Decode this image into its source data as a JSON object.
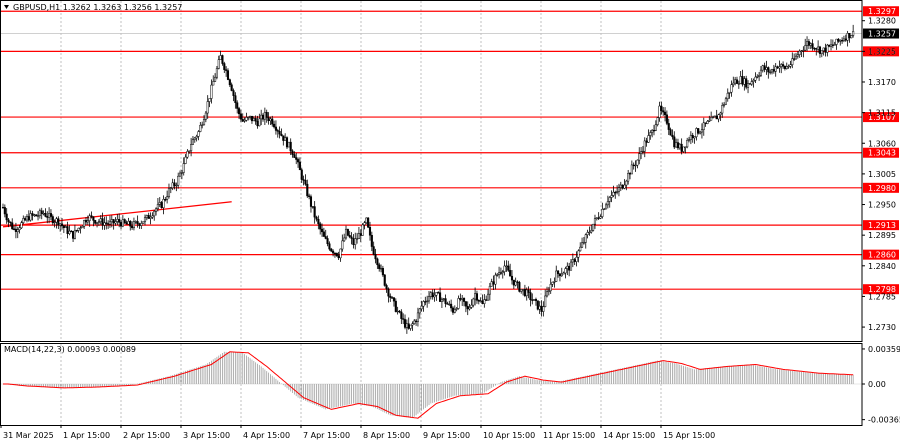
{
  "header": {
    "symbol_info": "GBPUSD,H1  1.3262 1.3263 1.3256 1.3257",
    "macd_info": "MACD(14,22,3) 0.00093 0.00089"
  },
  "colors": {
    "candle": "#000000",
    "grid": "#c0c0c0",
    "level": "#ff0000",
    "trendline": "#ff0000",
    "label_bg": "#ff0000",
    "label_text": "#ffffff",
    "current_bg": "#000000",
    "histogram": "#a0a0a0",
    "signal": "#ff0000"
  },
  "chart_data": {
    "type": "candlestick",
    "symbol": "GBPUSD",
    "timeframe": "H1",
    "y_axis": {
      "ticks": [
        1.273,
        1.2785,
        1.284,
        1.2895,
        1.295,
        1.3005,
        1.306,
        1.3115,
        1.317,
        1.3225,
        1.328
      ]
    },
    "x_axis": {
      "labels": [
        "31 Mar 2025",
        "1 Apr 15:00",
        "2 Apr 15:00",
        "3 Apr 15:00",
        "4 Apr 15:00",
        "7 Apr 15:00",
        "8 Apr 15:00",
        "9 Apr 15:00",
        "10 Apr 15:00",
        "11 Apr 15:00",
        "14 Apr 15:00",
        "15 Apr 15:00"
      ]
    },
    "horizontal_levels": [
      1.3297,
      1.3225,
      1.3107,
      1.3043,
      1.298,
      1.2913,
      1.286,
      1.2798
    ],
    "current_price": 1.3257,
    "trend_line": {
      "from": {
        "index": 0,
        "price": 1.291
      },
      "to": {
        "index": 124,
        "price": 1.2955
      }
    },
    "price_path": [
      [
        0,
        1.2945
      ],
      [
        3,
        1.292
      ],
      [
        6,
        1.2905
      ],
      [
        10,
        1.2915
      ],
      [
        14,
        1.2928
      ],
      [
        18,
        1.293
      ],
      [
        22,
        1.2935
      ],
      [
        26,
        1.2925
      ],
      [
        30,
        1.292
      ],
      [
        34,
        1.2905
      ],
      [
        38,
        1.2895
      ],
      [
        42,
        1.2912
      ],
      [
        46,
        1.2928
      ],
      [
        50,
        1.2922
      ],
      [
        54,
        1.2918
      ],
      [
        58,
        1.2915
      ],
      [
        62,
        1.292
      ],
      [
        66,
        1.2915
      ],
      [
        70,
        1.2912
      ],
      [
        74,
        1.2918
      ],
      [
        78,
        1.2925
      ],
      [
        82,
        1.294
      ],
      [
        86,
        1.295
      ],
      [
        90,
        1.2975
      ],
      [
        94,
        1.299
      ],
      [
        98,
        1.302
      ],
      [
        102,
        1.306
      ],
      [
        106,
        1.308
      ],
      [
        110,
        1.312
      ],
      [
        114,
        1.317
      ],
      [
        118,
        1.3215
      ],
      [
        121,
        1.319
      ],
      [
        124,
        1.316
      ],
      [
        127,
        1.312
      ],
      [
        130,
        1.31
      ],
      [
        134,
        1.3105
      ],
      [
        138,
        1.3098
      ],
      [
        142,
        1.311
      ],
      [
        146,
        1.31
      ],
      [
        150,
        1.308
      ],
      [
        154,
        1.306
      ],
      [
        158,
        1.304
      ],
      [
        162,
        1.3
      ],
      [
        166,
        1.296
      ],
      [
        170,
        1.292
      ],
      [
        174,
        1.289
      ],
      [
        178,
        1.287
      ],
      [
        182,
        1.286
      ],
      [
        186,
        1.29
      ],
      [
        190,
        1.288
      ],
      [
        194,
        1.29
      ],
      [
        197,
        1.292
      ],
      [
        200,
        1.2875
      ],
      [
        204,
        1.284
      ],
      [
        208,
        1.28
      ],
      [
        212,
        1.277
      ],
      [
        216,
        1.2745
      ],
      [
        220,
        1.2725
      ],
      [
        224,
        1.2745
      ],
      [
        228,
        1.2775
      ],
      [
        232,
        1.279
      ],
      [
        236,
        1.2785
      ],
      [
        240,
        1.2775
      ],
      [
        244,
        1.276
      ],
      [
        248,
        1.278
      ],
      [
        252,
        1.276
      ],
      [
        256,
        1.279
      ],
      [
        260,
        1.277
      ],
      [
        264,
        1.28
      ],
      [
        268,
        1.2825
      ],
      [
        272,
        1.284
      ],
      [
        276,
        1.2815
      ],
      [
        280,
        1.28
      ],
      [
        284,
        1.279
      ],
      [
        288,
        1.2775
      ],
      [
        292,
        1.276
      ],
      [
        296,
        1.28
      ],
      [
        300,
        1.2825
      ],
      [
        304,
        1.283
      ],
      [
        308,
        1.284
      ],
      [
        312,
        1.2865
      ],
      [
        316,
        1.289
      ],
      [
        320,
        1.2915
      ],
      [
        324,
        1.2935
      ],
      [
        328,
        1.296
      ],
      [
        332,
        1.297
      ],
      [
        336,
        1.2985
      ],
      [
        340,
        1.301
      ],
      [
        344,
        1.303
      ],
      [
        348,
        1.306
      ],
      [
        352,
        1.308
      ],
      [
        356,
        1.312
      ],
      [
        360,
        1.31
      ],
      [
        364,
        1.306
      ],
      [
        368,
        1.305
      ],
      [
        372,
        1.307
      ],
      [
        376,
        1.308
      ],
      [
        380,
        1.309
      ],
      [
        384,
        1.31
      ],
      [
        388,
        1.311
      ],
      [
        392,
        1.314
      ],
      [
        396,
        1.317
      ],
      [
        400,
        1.3175
      ],
      [
        404,
        1.3165
      ],
      [
        408,
        1.318
      ],
      [
        412,
        1.3195
      ],
      [
        416,
        1.3188
      ],
      [
        420,
        1.32
      ],
      [
        424,
        1.3195
      ],
      [
        428,
        1.3205
      ],
      [
        432,
        1.3225
      ],
      [
        436,
        1.324
      ],
      [
        440,
        1.3235
      ],
      [
        444,
        1.3225
      ],
      [
        448,
        1.3232
      ],
      [
        452,
        1.324
      ],
      [
        456,
        1.325
      ],
      [
        460,
        1.3257
      ]
    ],
    "macd": {
      "ticks": [
        0.00359,
        0.0,
        -0.00365
      ],
      "main_path": [
        [
          0,
          0.0
        ],
        [
          10,
          -0.0002
        ],
        [
          30,
          -0.0004
        ],
        [
          50,
          -0.0003
        ],
        [
          70,
          -0.0001
        ],
        [
          90,
          0.0008
        ],
        [
          110,
          0.002
        ],
        [
          120,
          0.0033
        ],
        [
          130,
          0.0032
        ],
        [
          140,
          0.0018
        ],
        [
          150,
          0.0002
        ],
        [
          160,
          -0.0014
        ],
        [
          175,
          -0.0026
        ],
        [
          190,
          -0.002
        ],
        [
          200,
          -0.0023
        ],
        [
          210,
          -0.0032
        ],
        [
          222,
          -0.0035
        ],
        [
          232,
          -0.002
        ],
        [
          245,
          -0.0012
        ],
        [
          260,
          -0.001
        ],
        [
          270,
          0.0002
        ],
        [
          280,
          0.0008
        ],
        [
          290,
          0.0004
        ],
        [
          300,
          0.0002
        ],
        [
          320,
          0.001
        ],
        [
          340,
          0.0018
        ],
        [
          355,
          0.0024
        ],
        [
          365,
          0.0021
        ],
        [
          375,
          0.0015
        ],
        [
          390,
          0.0018
        ],
        [
          405,
          0.002
        ],
        [
          420,
          0.0015
        ],
        [
          440,
          0.0011
        ],
        [
          460,
          0.00093
        ]
      ]
    }
  }
}
